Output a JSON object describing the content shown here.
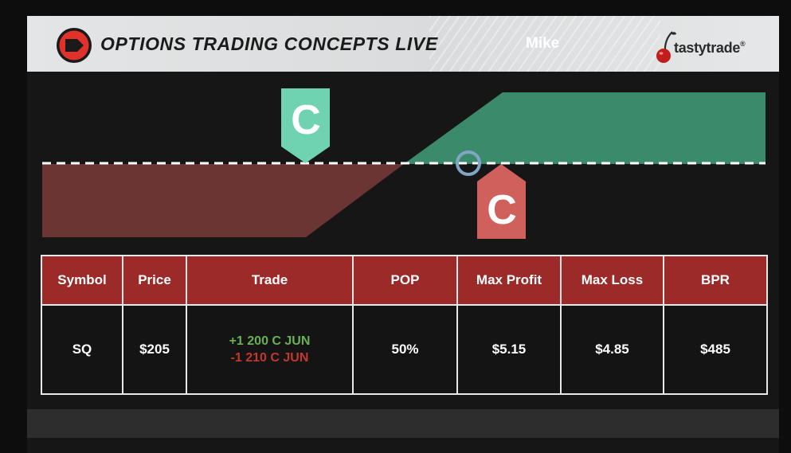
{
  "header": {
    "title": "OPTIONS TRADING CONCEPTS LIVE",
    "host": "Mike",
    "brand": "tastytrade",
    "brand_mark": "®"
  },
  "diagram": {
    "long_call_label": "C",
    "short_call_label": "C",
    "colors": {
      "profit": "#3b8a6c",
      "loss": "#6a3532",
      "long_tag": "#6fd3b2",
      "short_tag": "#d0605c",
      "breakeven": "#7fa6c4"
    }
  },
  "table": {
    "headers": [
      "Symbol",
      "Price",
      "Trade",
      "POP",
      "Max Profit",
      "Max Loss",
      "BPR"
    ],
    "row": {
      "symbol": "SQ",
      "price": "$205",
      "trade_long": "+1 200 C JUN",
      "trade_short": "-1 210 C JUN",
      "pop": "50%",
      "max_profit": "$5.15",
      "max_loss": "$4.85",
      "bpr": "$485"
    }
  },
  "colors": {
    "header_red": "#9b2a28",
    "long_green": "#6ab055",
    "short_red": "#c3372d"
  }
}
